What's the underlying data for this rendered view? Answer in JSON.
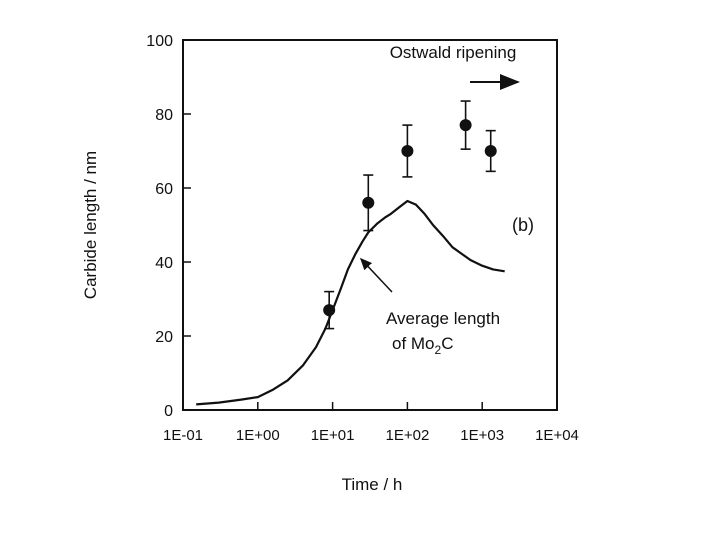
{
  "chart_data": {
    "type": "line",
    "x_scale": "log",
    "xlim": [
      0.1,
      10000
    ],
    "ylim": [
      0,
      100
    ],
    "xlabel": "Time / h",
    "ylabel": "Carbide length / nm",
    "x_ticks": [
      "1E-01",
      "1E+00",
      "1E+01",
      "1E+02",
      "1E+03",
      "1E+04"
    ],
    "y_ticks": [
      "0",
      "20",
      "40",
      "60",
      "80",
      "100"
    ],
    "grid": false,
    "panel_label": "(b)",
    "arrow_label": "Ostwald ripening",
    "annotation_line1": "Average length",
    "annotation_line2_prefix": "of Mo",
    "annotation_line2_sub": "2",
    "annotation_line2_suffix": "C",
    "series": [
      {
        "kind": "line",
        "x": [
          0.15,
          0.3,
          0.6,
          1,
          1.6,
          2.5,
          4,
          6,
          8,
          10,
          13,
          16,
          20,
          25,
          30,
          40,
          50,
          60,
          80,
          100,
          130,
          170,
          220,
          300,
          400,
          550,
          700,
          1000,
          1400,
          2000
        ],
        "y": [
          1.5,
          2,
          2.8,
          3.5,
          5.5,
          8,
          12,
          17,
          22,
          27,
          33,
          38,
          42,
          45.5,
          48,
          50.5,
          52,
          53,
          55,
          56.5,
          55.5,
          53,
          50,
          47,
          44,
          42,
          40.5,
          39,
          38,
          37.5
        ]
      },
      {
        "kind": "points_with_error_bars",
        "x": [
          9,
          30,
          100,
          600,
          1300
        ],
        "y": [
          27,
          56,
          70,
          77,
          70
        ],
        "err": [
          5,
          7.5,
          7,
          6.5,
          5.5
        ]
      }
    ]
  }
}
